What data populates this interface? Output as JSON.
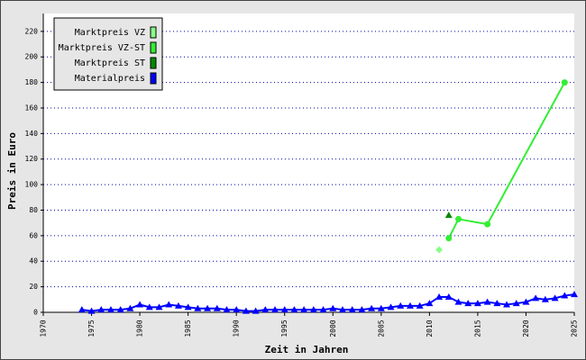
{
  "chart_data": {
    "type": "line",
    "x_label": "Zeit in Jahren",
    "y_label": "Preis in Euro",
    "xlim": [
      1970,
      2025
    ],
    "xticks": [
      1970,
      1975,
      1980,
      1985,
      1990,
      1995,
      2000,
      2005,
      2010,
      2015,
      2020,
      2025
    ],
    "ylim": [
      0,
      234
    ],
    "yticks": [
      0,
      20,
      40,
      60,
      80,
      100,
      120,
      140,
      160,
      180,
      200,
      220
    ],
    "grid": true,
    "legend": "upper left",
    "series": [
      {
        "name": "Marktpreis VZ",
        "color": "#88ff88",
        "marker": "diamond",
        "line": false,
        "x": [
          2011
        ],
        "values": [
          49
        ]
      },
      {
        "name": "Marktpreis VZ-ST",
        "color": "#33ee33",
        "marker": "circle",
        "line": true,
        "x": [
          2012,
          2013,
          2016,
          2024
        ],
        "values": [
          58,
          73,
          69,
          180
        ]
      },
      {
        "name": "Marktpreis ST",
        "color": "#008800",
        "marker": "triangle",
        "line": false,
        "x": [
          2012
        ],
        "values": [
          76
        ]
      },
      {
        "name": "Materialpreis",
        "color": "#0000ff",
        "marker": "triangle",
        "line": true,
        "x": [
          1974,
          1975,
          1976,
          1977,
          1978,
          1979,
          1980,
          1981,
          1982,
          1983,
          1984,
          1985,
          1986,
          1987,
          1988,
          1989,
          1990,
          1991,
          1992,
          1993,
          1994,
          1995,
          1996,
          1997,
          1998,
          1999,
          2000,
          2001,
          2002,
          2003,
          2004,
          2005,
          2006,
          2007,
          2008,
          2009,
          2010,
          2011,
          2012,
          2013,
          2014,
          2015,
          2016,
          2017,
          2018,
          2019,
          2020,
          2021,
          2022,
          2023,
          2024,
          2025
        ],
        "values": [
          2,
          1,
          2,
          2,
          2,
          3,
          6,
          4,
          4,
          6,
          5,
          4,
          3,
          3,
          3,
          2,
          2,
          1,
          1,
          2,
          2,
          2,
          2,
          2,
          2,
          2,
          3,
          2,
          2,
          2,
          3,
          3,
          4,
          5,
          5,
          5,
          7,
          12,
          12,
          8,
          7,
          7,
          8,
          7,
          6,
          7,
          8,
          11,
          10,
          11,
          13,
          14
        ]
      }
    ]
  }
}
